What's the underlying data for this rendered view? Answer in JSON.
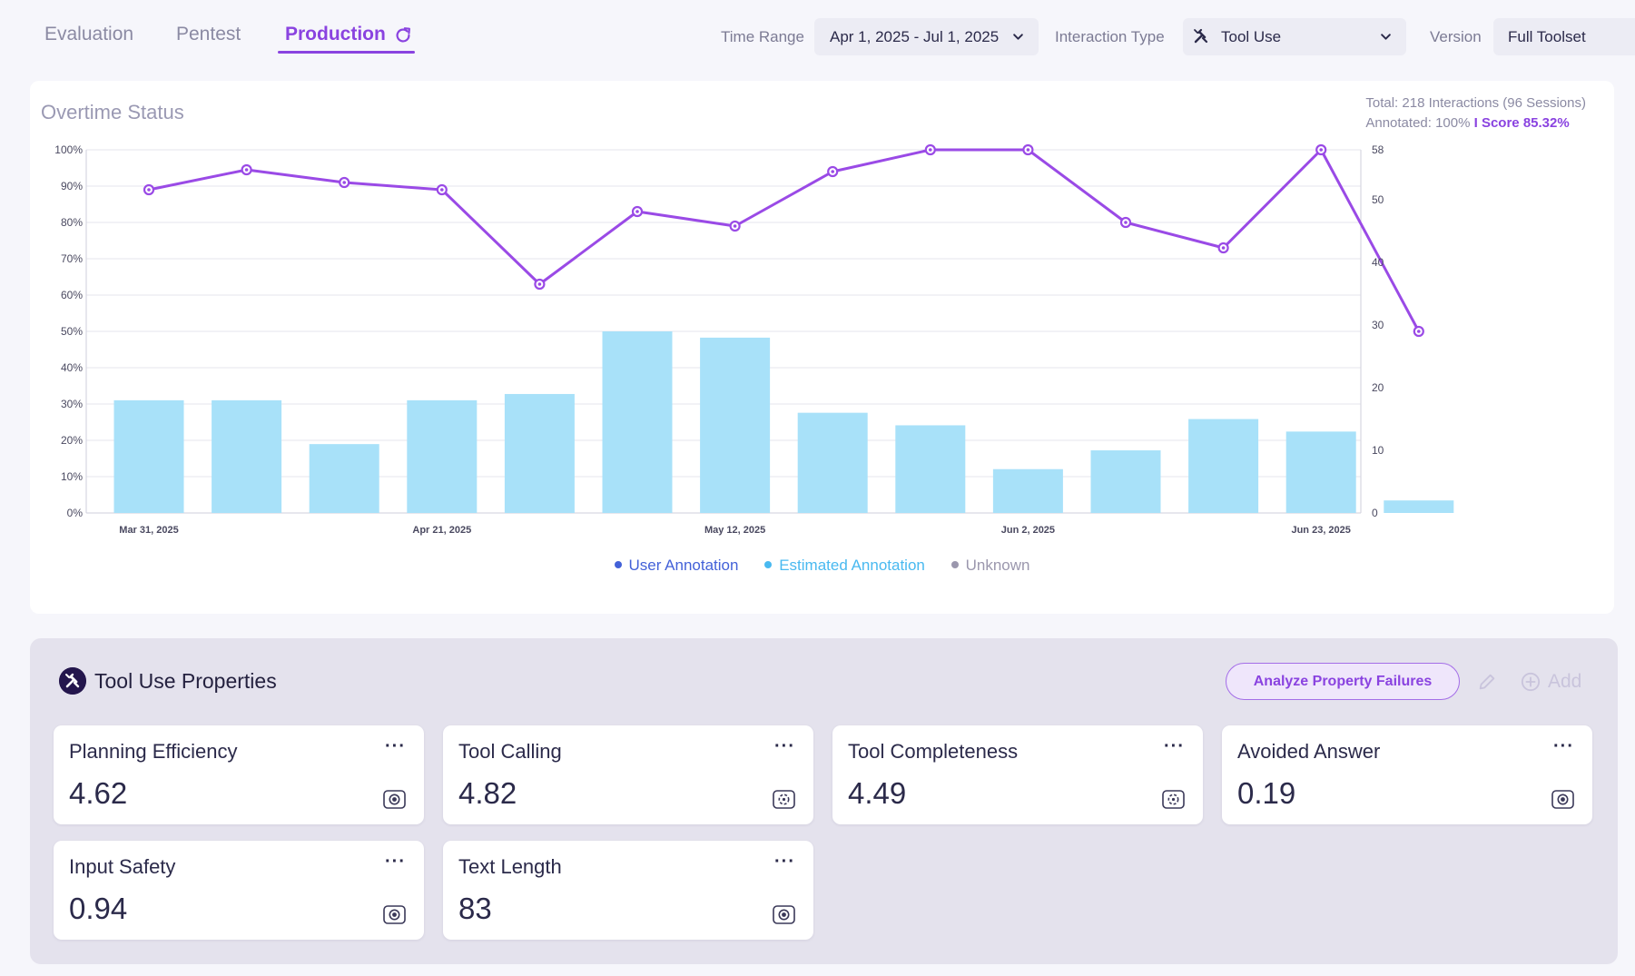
{
  "tabs": [
    {
      "label": "Evaluation"
    },
    {
      "label": "Pentest"
    },
    {
      "label": "Production"
    }
  ],
  "filters": {
    "time_range_label": "Time Range",
    "time_range_value": "Apr 1, 2025 - Jul 1, 2025",
    "interaction_type_label": "Interaction Type",
    "interaction_type_value": "Tool Use",
    "version_label": "Version",
    "version_value": "Full Toolset"
  },
  "chart": {
    "title": "Overtime Status",
    "summary_line1": "Total: 218 Interactions (96 Sessions)",
    "summary_line2_prefix": "Annotated: 100%",
    "summary_line2_score": "I Score 85.32%"
  },
  "chart_data": {
    "type": "bar+line",
    "title": "Overtime Status",
    "x_tick_labels": [
      "Mar 31, 2025",
      "Apr 21, 2025",
      "May 12, 2025",
      "Jun 2, 2025",
      "Jun 23, 2025"
    ],
    "x_tick_indices": [
      0,
      3,
      6,
      9,
      12
    ],
    "bars": {
      "axis": "right",
      "values": [
        18,
        18,
        11,
        18,
        19,
        29,
        28,
        16,
        14,
        7,
        10,
        15,
        13,
        2
      ]
    },
    "line": {
      "axis": "left",
      "values": [
        89,
        94.5,
        91,
        89,
        63,
        83,
        79,
        94,
        100,
        100,
        80,
        73,
        100,
        50
      ]
    },
    "y_left": {
      "ticks": [
        "0%",
        "10%",
        "20%",
        "30%",
        "40%",
        "50%",
        "60%",
        "70%",
        "80%",
        "90%",
        "100%"
      ],
      "range": [
        0,
        100
      ]
    },
    "y_right": {
      "ticks": [
        "0",
        "10",
        "20",
        "30",
        "40",
        "50",
        "58"
      ],
      "tick_values": [
        0,
        10,
        20,
        30,
        40,
        50,
        58
      ],
      "range": [
        0,
        58
      ]
    },
    "legend": [
      {
        "label": "User Annotation",
        "color": "#4361d8"
      },
      {
        "label": "Estimated Annotation",
        "color": "#49b9f0"
      },
      {
        "label": "Unknown",
        "color": "#9b97ad"
      }
    ],
    "legend_placement": "bottom-center",
    "bar_color": "#a8e1f9",
    "line_color": "#9a4ae6",
    "grid": true
  },
  "properties": {
    "title": "Tool Use Properties",
    "analyze_label": "Analyze Property Failures",
    "add_label": "Add",
    "cards": [
      {
        "name": "Planning Efficiency",
        "value": "4.62"
      },
      {
        "name": "Tool Calling",
        "value": "4.82"
      },
      {
        "name": "Tool Completeness",
        "value": "4.49"
      },
      {
        "name": "Avoided Answer",
        "value": "0.19"
      },
      {
        "name": "Input Safety",
        "value": "0.94"
      },
      {
        "name": "Text Length",
        "value": "83"
      }
    ],
    "more_label": "···"
  }
}
